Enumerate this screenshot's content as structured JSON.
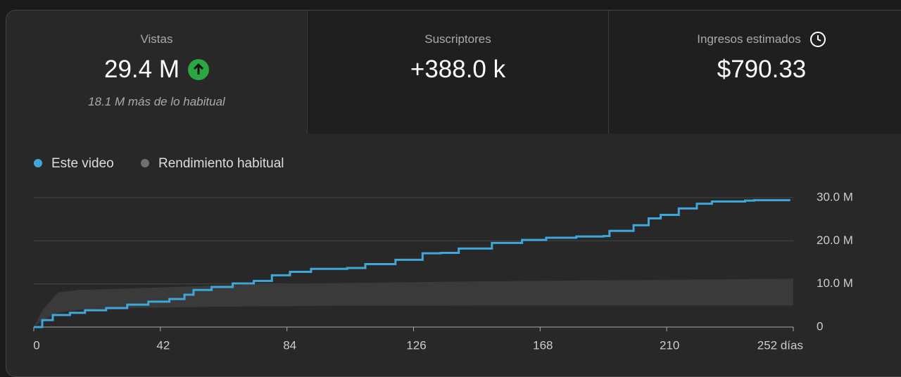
{
  "cards": [
    {
      "label": "Vistas",
      "value": "29.4 M",
      "note": "18.1 M más de lo habitual"
    },
    {
      "label": "Suscriptores",
      "value": "+388.0 k"
    },
    {
      "label": "Ingresos estimados",
      "value": "$790.33"
    }
  ],
  "chart_data": {
    "type": "line",
    "x": [
      0,
      2.8,
      6.3,
      12,
      17,
      24,
      31,
      38,
      45,
      50,
      53,
      59,
      66,
      73,
      79,
      85,
      92,
      104,
      110,
      120,
      129,
      135,
      141,
      152,
      162,
      170,
      180,
      189,
      191,
      199,
      204,
      208,
      214,
      220,
      225,
      236,
      239,
      251
    ],
    "series": [
      {
        "name": "Este video",
        "color": "#3ea6d8",
        "values": [
          0,
          1.6,
          2.8,
          3.3,
          3.9,
          4.4,
          5.2,
          5.9,
          6.5,
          7.5,
          8.6,
          9.3,
          10.1,
          10.7,
          12.0,
          12.8,
          13.5,
          13.7,
          14.6,
          15.6,
          17.1,
          17.2,
          18.2,
          19.5,
          20.2,
          20.7,
          21.0,
          21.1,
          22.3,
          23.6,
          25.2,
          26.0,
          27.5,
          28.6,
          29.1,
          29.3,
          29.4,
          29.4
        ]
      },
      {
        "name": "Rendimiento habitual",
        "color": "#717171",
        "band_color": "#3a3a3a",
        "x": [
          0,
          3,
          8,
          15,
          30,
          60,
          90,
          150,
          252
        ],
        "high": [
          0,
          4.0,
          8.0,
          8.6,
          8.9,
          9.6,
          10.1,
          10.6,
          11.2
        ],
        "low": [
          0,
          1.6,
          3.3,
          4.0,
          4.4,
          4.7,
          4.9,
          5.0,
          5.0
        ]
      }
    ],
    "xlim": [
      0,
      252
    ],
    "xticks": [
      0,
      42,
      84,
      126,
      168,
      210,
      {
        "value": 252,
        "label": "252 días"
      }
    ],
    "ylim": [
      0,
      30
    ],
    "yticks": [
      {
        "value": 0,
        "label": "0"
      },
      {
        "value": 10,
        "label": "10.0 M"
      },
      {
        "value": 20,
        "label": "20.0 M"
      },
      {
        "value": 30,
        "label": "30.0 M"
      }
    ],
    "grid": true
  }
}
